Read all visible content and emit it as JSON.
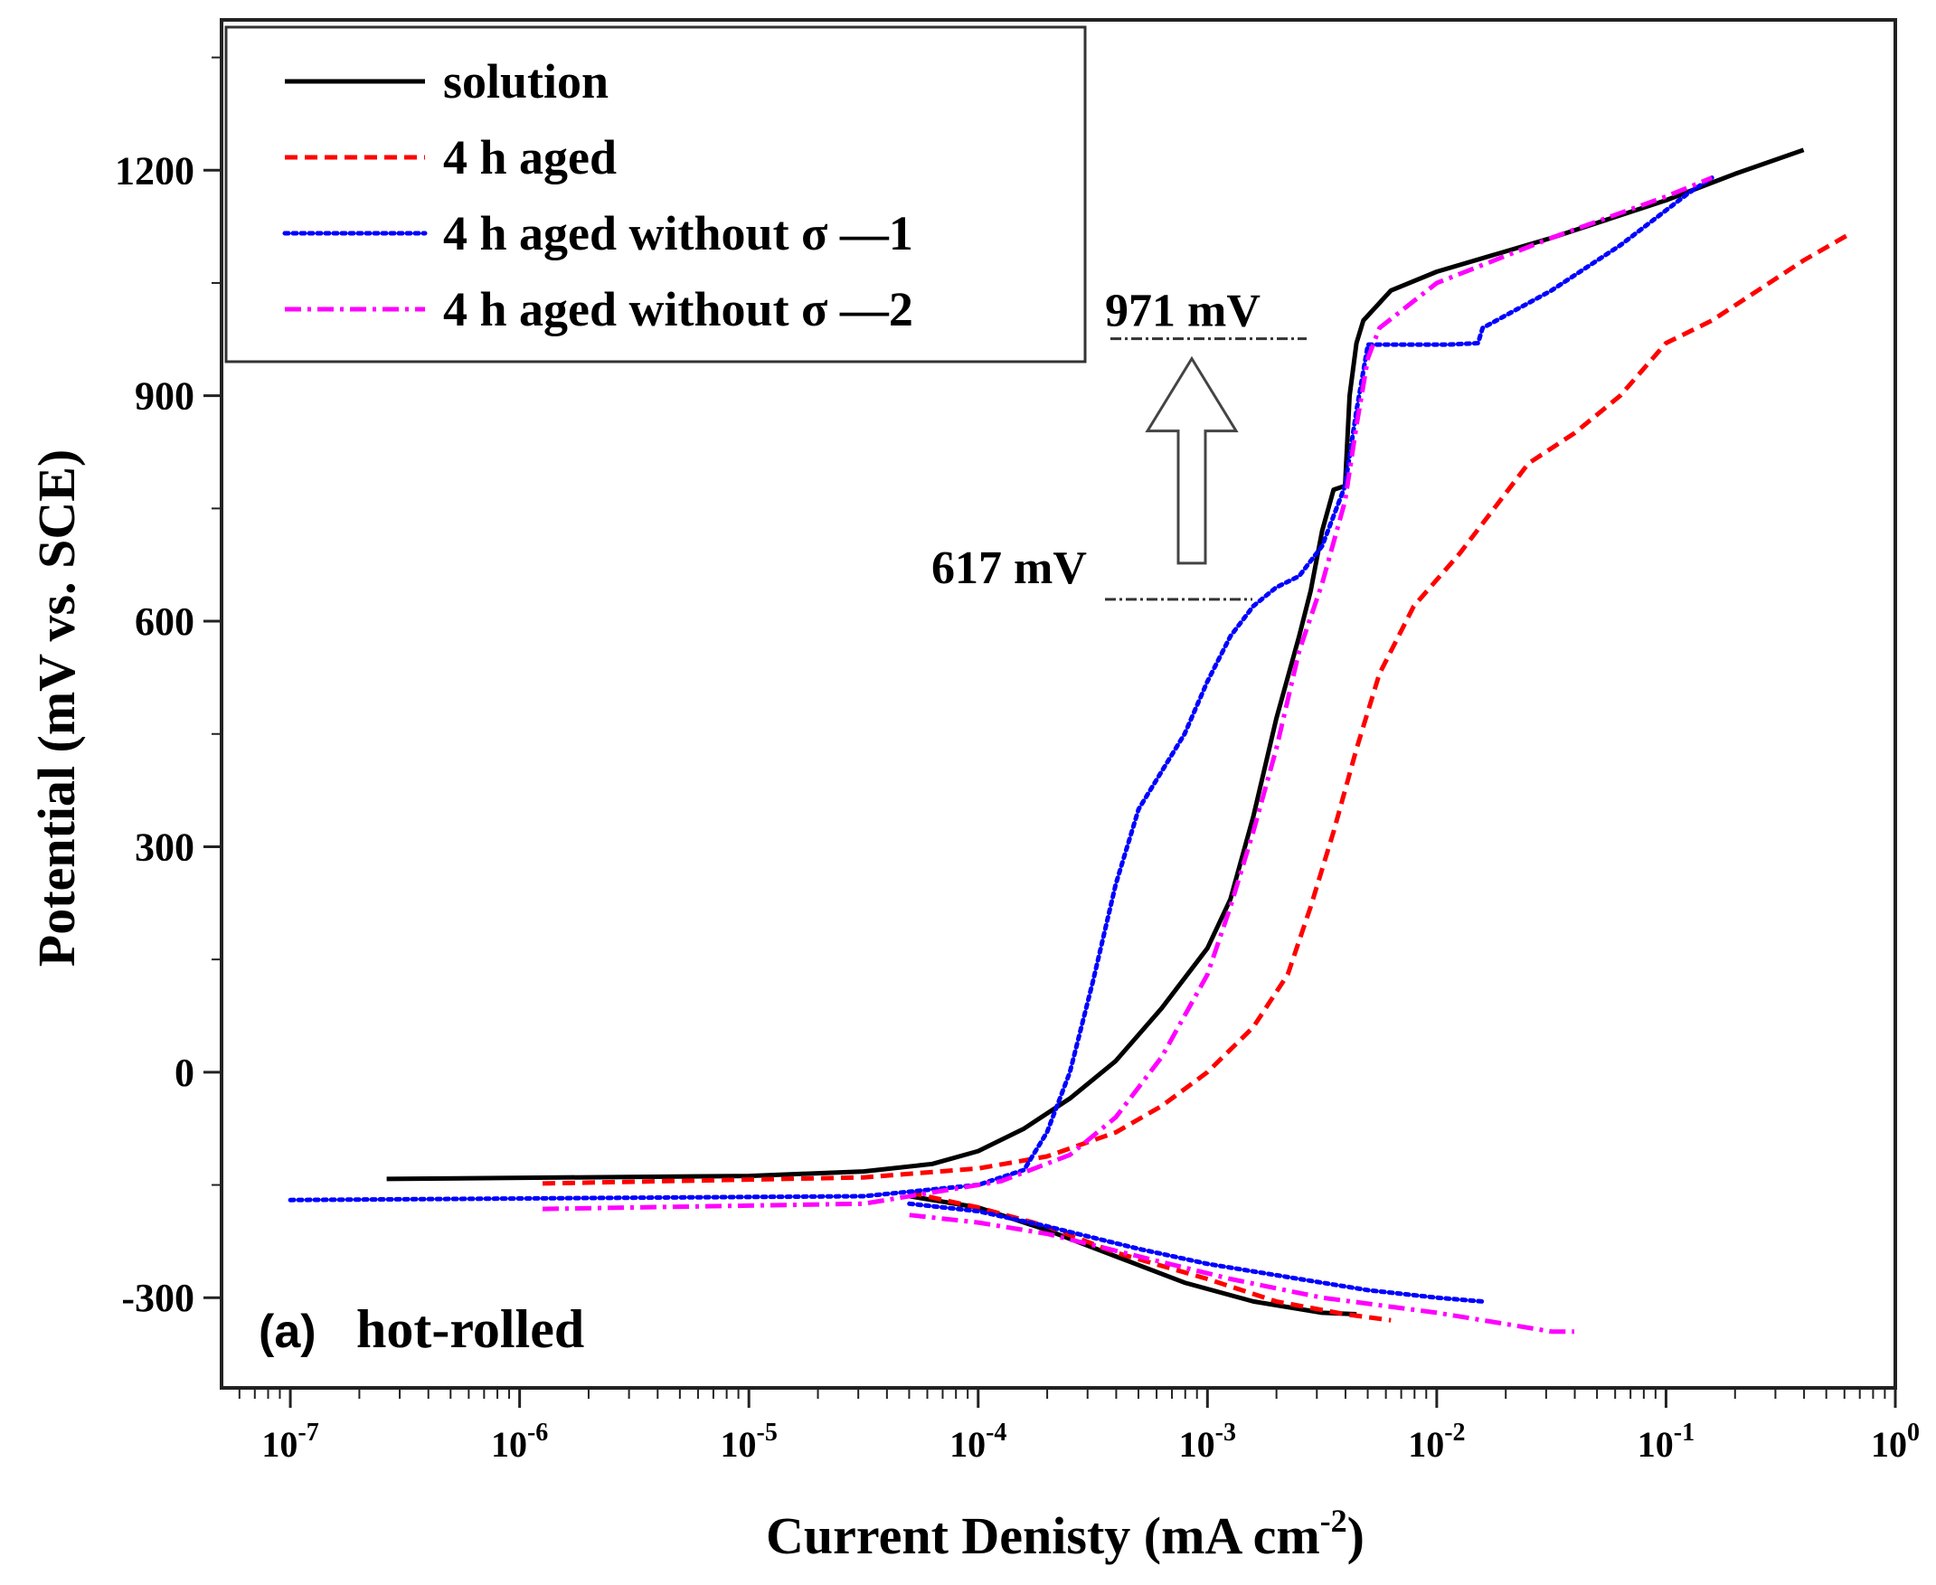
{
  "chart_data": {
    "type": "line",
    "title": "",
    "xlabel": "Current Denisty (mA cm",
    "xlabel_sup": "-2",
    "xlabel_close": ")",
    "ylabel": "Potential (mV vs. SCE)",
    "xscale": "log",
    "xlim_exp": [
      -7.3,
      0
    ],
    "ylim": [
      -420,
      1400
    ],
    "x_tick_base": "10",
    "x_tick_exponents": [
      "-7",
      "-6",
      "-5",
      "-4",
      "-3",
      "-2",
      "-1",
      "0"
    ],
    "y_ticks": [
      -300,
      0,
      300,
      600,
      900,
      1200
    ],
    "y_tick_labels": [
      "-300",
      "0",
      "300",
      "600",
      "900",
      "1200"
    ],
    "panel_label": "(a)",
    "panel_text": "hot-rolled",
    "legend_position": "top-left",
    "annotations": [
      {
        "text": "971 mV",
        "y": 971
      },
      {
        "text": "617 mV",
        "y": 617
      }
    ],
    "series": [
      {
        "name": "solution",
        "color": "#000000",
        "style": "solid",
        "anodic": [
          [
            -6.58,
            -142
          ],
          [
            -5,
            -138
          ],
          [
            -4.5,
            -132
          ],
          [
            -4.2,
            -122
          ],
          [
            -4.0,
            -105
          ],
          [
            -3.8,
            -75
          ],
          [
            -3.6,
            -35
          ],
          [
            -3.4,
            15
          ],
          [
            -3.2,
            85
          ],
          [
            -3.0,
            165
          ],
          [
            -2.9,
            230
          ],
          [
            -2.8,
            340
          ],
          [
            -2.7,
            470
          ],
          [
            -2.6,
            580
          ],
          [
            -2.55,
            640
          ],
          [
            -2.5,
            720
          ],
          [
            -2.45,
            775
          ],
          [
            -2.4,
            780
          ],
          [
            -2.38,
            900
          ],
          [
            -2.35,
            970
          ],
          [
            -2.32,
            1000
          ],
          [
            -2.2,
            1040
          ],
          [
            -2.0,
            1065
          ],
          [
            -1.5,
            1110
          ],
          [
            -1.0,
            1160
          ],
          [
            -0.7,
            1195
          ],
          [
            -0.4,
            1227
          ]
        ],
        "cathodic": [
          [
            -4.3,
            -165
          ],
          [
            -4.0,
            -180
          ],
          [
            -3.7,
            -210
          ],
          [
            -3.4,
            -245
          ],
          [
            -3.1,
            -280
          ],
          [
            -2.8,
            -305
          ],
          [
            -2.5,
            -320
          ],
          [
            -2.35,
            -322
          ]
        ]
      },
      {
        "name": "4 h aged",
        "color": "#ff0000",
        "style": "dashed",
        "anodic": [
          [
            -5.9,
            -148
          ],
          [
            -4.5,
            -140
          ],
          [
            -4.0,
            -128
          ],
          [
            -3.7,
            -112
          ],
          [
            -3.4,
            -80
          ],
          [
            -3.2,
            -45
          ],
          [
            -3.0,
            0
          ],
          [
            -2.8,
            60
          ],
          [
            -2.65,
            130
          ],
          [
            -2.55,
            220
          ],
          [
            -2.45,
            320
          ],
          [
            -2.35,
            430
          ],
          [
            -2.25,
            530
          ],
          [
            -2.1,
            620
          ],
          [
            -1.9,
            690
          ],
          [
            -1.75,
            750
          ],
          [
            -1.6,
            810
          ],
          [
            -1.4,
            850
          ],
          [
            -1.2,
            900
          ],
          [
            -1.0,
            970
          ],
          [
            -0.8,
            1000
          ],
          [
            -0.6,
            1040
          ],
          [
            -0.4,
            1080
          ],
          [
            -0.2,
            1115
          ]
        ],
        "cathodic": [
          [
            -4.3,
            -160
          ],
          [
            -4.0,
            -180
          ],
          [
            -3.7,
            -205
          ],
          [
            -3.4,
            -240
          ],
          [
            -3.0,
            -275
          ],
          [
            -2.7,
            -305
          ],
          [
            -2.4,
            -322
          ],
          [
            -2.2,
            -330
          ]
        ]
      },
      {
        "name": "4 h aged without  σ — 1",
        "legend_label": "4 h aged without  σ —1",
        "color": "#0000ff",
        "style": "dotted",
        "anodic": [
          [
            -7.0,
            -170
          ],
          [
            -4.5,
            -165
          ],
          [
            -4.0,
            -150
          ],
          [
            -3.8,
            -130
          ],
          [
            -3.7,
            -80
          ],
          [
            -3.6,
            0
          ],
          [
            -3.5,
            120
          ],
          [
            -3.4,
            250
          ],
          [
            -3.3,
            350
          ],
          [
            -3.2,
            400
          ],
          [
            -3.1,
            450
          ],
          [
            -3.0,
            520
          ],
          [
            -2.9,
            580
          ],
          [
            -2.8,
            620
          ],
          [
            -2.7,
            645
          ],
          [
            -2.6,
            660
          ],
          [
            -2.5,
            700
          ],
          [
            -2.4,
            780
          ],
          [
            -2.35,
            880
          ],
          [
            -2.3,
            968
          ],
          [
            -1.95,
            968
          ],
          [
            -1.82,
            970
          ],
          [
            -1.8,
            990
          ],
          [
            -1.5,
            1040
          ],
          [
            -1.2,
            1100
          ],
          [
            -0.9,
            1170
          ],
          [
            -0.8,
            1190
          ]
        ],
        "cathodic": [
          [
            -4.3,
            -175
          ],
          [
            -4.0,
            -185
          ],
          [
            -3.7,
            -205
          ],
          [
            -3.3,
            -235
          ],
          [
            -3.0,
            -255
          ],
          [
            -2.6,
            -275
          ],
          [
            -2.3,
            -290
          ],
          [
            -2.0,
            -300
          ],
          [
            -1.8,
            -305
          ]
        ]
      },
      {
        "name": "4 h aged without  σ — 2",
        "legend_label": "4 h aged without  σ —2",
        "color": "#ff00ff",
        "style": "dashdot",
        "anodic": [
          [
            -5.9,
            -182
          ],
          [
            -4.5,
            -175
          ],
          [
            -4.2,
            -160
          ],
          [
            -3.9,
            -145
          ],
          [
            -3.6,
            -110
          ],
          [
            -3.4,
            -60
          ],
          [
            -3.2,
            20
          ],
          [
            -3.0,
            130
          ],
          [
            -2.9,
            220
          ],
          [
            -2.8,
            320
          ],
          [
            -2.7,
            430
          ],
          [
            -2.6,
            560
          ],
          [
            -2.5,
            650
          ],
          [
            -2.4,
            760
          ],
          [
            -2.35,
            860
          ],
          [
            -2.3,
            950
          ],
          [
            -2.25,
            990
          ],
          [
            -2.0,
            1050
          ],
          [
            -1.5,
            1110
          ],
          [
            -1.0,
            1165
          ],
          [
            -0.8,
            1190
          ]
        ],
        "cathodic": [
          [
            -4.3,
            -190
          ],
          [
            -4.0,
            -200
          ],
          [
            -3.7,
            -215
          ],
          [
            -3.3,
            -245
          ],
          [
            -2.9,
            -275
          ],
          [
            -2.5,
            -300
          ],
          [
            -2.0,
            -320
          ],
          [
            -1.7,
            -335
          ],
          [
            -1.5,
            -345
          ],
          [
            -1.4,
            -345
          ]
        ]
      }
    ]
  }
}
